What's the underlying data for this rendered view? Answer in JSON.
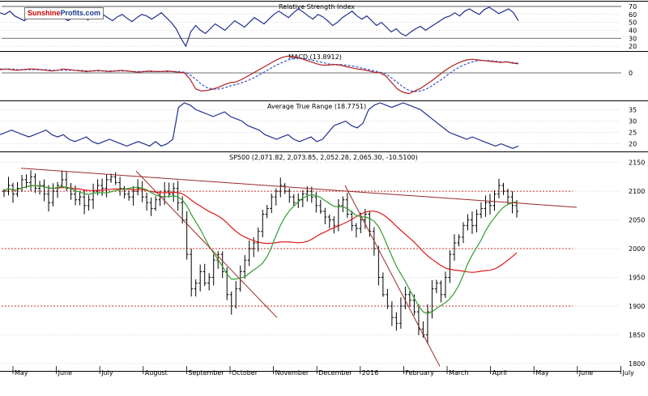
{
  "logo": {
    "part1": "Sunshine",
    "part2": "Profits",
    "suffix": ".com"
  },
  "colors": {
    "price": "#000000",
    "rsi": "#1f2f8f",
    "macd": "#b02020",
    "signal": "#3355cc",
    "atr": "#1f2f8f",
    "sma50": "#2e9e2e",
    "sma200": "#e01818",
    "trend": "#9b2a2a",
    "ref": "#d03030",
    "grid": "#b8b8b8",
    "sep": "#000000"
  },
  "chart_data": [
    {
      "type": "line",
      "title": "Relative Strength Index",
      "yticks": [
        20,
        30,
        40,
        50,
        60,
        70
      ],
      "ylim": [
        15,
        75
      ],
      "reference_lines": [
        70,
        30
      ],
      "series": [
        {
          "values": [
            62,
            60,
            64,
            58,
            55,
            52,
            58,
            62,
            57,
            54,
            60,
            63,
            58,
            55,
            52,
            57,
            61,
            57,
            53,
            59,
            64,
            60,
            56,
            52,
            57,
            60,
            55,
            51,
            56,
            60,
            58,
            54,
            58,
            62,
            56,
            50,
            42,
            30,
            20,
            38,
            46,
            40,
            36,
            42,
            48,
            44,
            40,
            46,
            52,
            48,
            44,
            50,
            56,
            52,
            48,
            54,
            60,
            64,
            60,
            56,
            62,
            67,
            63,
            58,
            54,
            60,
            57,
            52,
            46,
            50,
            56,
            60,
            64,
            58,
            54,
            58,
            52,
            46,
            50,
            44,
            38,
            42,
            36,
            33,
            38,
            42,
            45,
            40,
            44,
            48,
            52,
            56,
            58,
            62,
            58,
            64,
            67,
            63,
            60,
            66,
            69,
            65,
            61,
            64,
            67,
            62,
            52
          ]
        }
      ]
    },
    {
      "type": "line",
      "title": "MACD (13.8912)",
      "yticks": [
        0
      ],
      "ylim": [
        -40,
        30
      ],
      "series": [
        {
          "name": "MACD",
          "values": [
            5,
            6,
            5,
            4,
            5,
            6,
            6,
            5,
            4,
            3,
            4,
            6,
            5,
            4,
            3,
            2,
            3,
            4,
            3,
            2,
            3,
            4,
            3,
            2,
            1,
            2,
            3,
            2,
            2,
            3,
            2,
            1,
            0,
            -10,
            -25,
            -28,
            -27,
            -25,
            -22,
            -18,
            -15,
            -14,
            -10,
            -5,
            0,
            5,
            10,
            15,
            20,
            24,
            26,
            25,
            23,
            20,
            17,
            14,
            12,
            12,
            13,
            12,
            10,
            8,
            6,
            5,
            3,
            1,
            0,
            -5,
            -15,
            -25,
            -30,
            -32,
            -28,
            -24,
            -18,
            -12,
            -5,
            2,
            8,
            13,
            17,
            20,
            21,
            20,
            19,
            18,
            17,
            16,
            17,
            15,
            14
          ]
        },
        {
          "name": "Signal",
          "values": [
            6,
            6,
            6,
            5,
            5,
            5,
            5,
            5,
            5,
            4,
            4,
            4,
            4,
            4,
            4,
            3,
            3,
            3,
            3,
            3,
            3,
            3,
            3,
            2,
            2,
            2,
            2,
            2,
            2,
            2,
            2,
            2,
            1,
            -3,
            -10,
            -18,
            -23,
            -25,
            -25,
            -23,
            -20,
            -18,
            -15,
            -12,
            -8,
            -3,
            2,
            7,
            12,
            16,
            20,
            22,
            23,
            22,
            20,
            18,
            16,
            14,
            13,
            13,
            12,
            11,
            9,
            7,
            5,
            3,
            1,
            -2,
            -8,
            -15,
            -22,
            -27,
            -29,
            -28,
            -25,
            -20,
            -14,
            -8,
            -1,
            5,
            10,
            14,
            17,
            19,
            19,
            19,
            18,
            17,
            17,
            16,
            15
          ]
        }
      ]
    },
    {
      "type": "line",
      "title": "Average True Range (18.7751)",
      "yticks": [
        20,
        25,
        30,
        35
      ],
      "ylim": [
        17,
        38
      ],
      "series": [
        {
          "values": [
            24,
            25,
            26,
            25,
            24,
            23,
            24,
            25,
            26,
            24,
            23,
            24,
            22,
            21,
            22,
            23,
            21,
            20,
            21,
            22,
            21,
            20,
            19,
            20,
            21,
            20,
            19,
            21,
            19,
            20,
            22,
            36,
            38,
            37,
            35,
            34,
            33,
            32,
            33,
            34,
            32,
            31,
            30,
            28,
            27,
            26,
            24,
            23,
            22,
            23,
            24,
            22,
            21,
            22,
            23,
            21,
            22,
            25,
            28,
            29,
            30,
            28,
            27,
            29,
            35,
            37,
            38,
            37,
            36,
            37,
            38,
            37,
            36,
            35,
            33,
            31,
            29,
            27,
            25,
            24,
            23,
            22,
            23,
            22,
            21,
            20,
            19,
            20,
            19,
            18,
            19
          ]
        }
      ]
    },
    {
      "type": "bar",
      "title": "SP500 (2,071.82, 2,073.85, 2,052.28, 2,065.30, -10.5100)",
      "yticks": [
        1800,
        1850,
        1900,
        1950,
        2000,
        2050,
        2100,
        2150
      ],
      "ylim": [
        1790,
        2165
      ],
      "reference_lines": [
        2100,
        2000,
        1900
      ],
      "months": [
        "May",
        "June",
        "July",
        "August",
        "September",
        "October",
        "November",
        "December",
        "2016",
        "February",
        "March",
        "April",
        "May",
        "June",
        "July"
      ],
      "close": [
        2100,
        2110,
        2095,
        2105,
        2120,
        2115,
        2125,
        2105,
        2110,
        2095,
        2080,
        2100,
        2110,
        2120,
        2105,
        2095,
        2085,
        2090,
        2075,
        2085,
        2100,
        2110,
        2105,
        2120,
        2125,
        2115,
        2105,
        2095,
        2090,
        2100,
        2105,
        2090,
        2080,
        2070,
        2085,
        2090,
        2100,
        2095,
        2105,
        2080,
        2050,
        1990,
        1930,
        1940,
        1960,
        1940,
        1950,
        1980,
        1990,
        1960,
        1920,
        1900,
        1930,
        1960,
        1980,
        2000,
        2010,
        2030,
        2060,
        2070,
        2090,
        2100,
        2110,
        2100,
        2090,
        2080,
        2085,
        2095,
        2100,
        2090,
        2075,
        2065,
        2055,
        2050,
        2040,
        2075,
        2085,
        2060,
        2040,
        2035,
        2050,
        2060,
        2030,
        2000,
        1950,
        1920,
        1900,
        1880,
        1870,
        1900,
        1920,
        1910,
        1890,
        1860,
        1850,
        1890,
        1930,
        1940,
        1920,
        1950,
        1990,
        2010,
        2020,
        2040,
        2050,
        2040,
        2060,
        2070,
        2080,
        2075,
        2095,
        2110,
        2100,
        2090,
        2075,
        2065
      ]
    }
  ]
}
